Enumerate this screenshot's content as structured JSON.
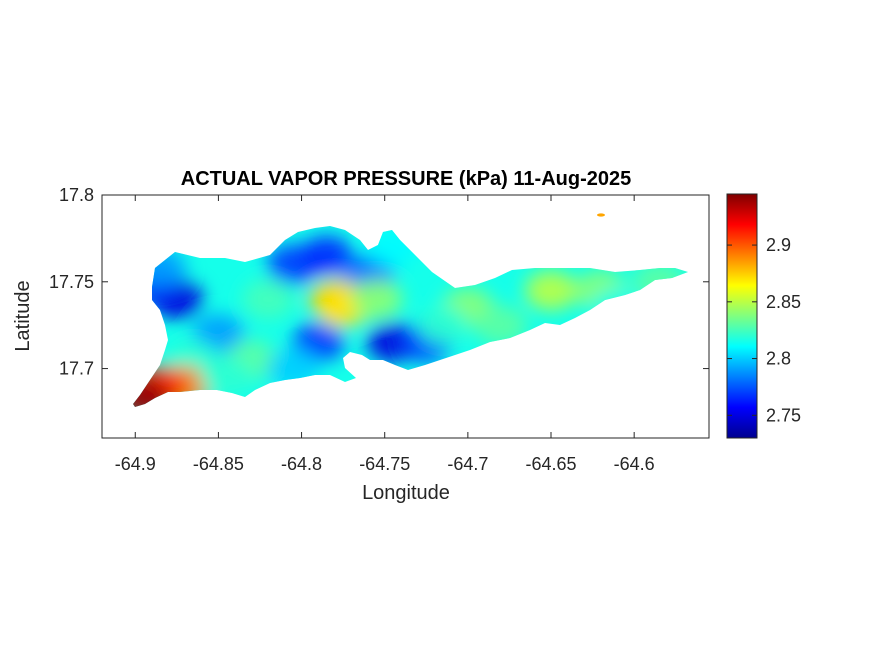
{
  "title": "ACTUAL VAPOR PRESSURE (kPa) 11-Aug-2025",
  "xlabel": "Longitude",
  "ylabel": "Latitude",
  "chart_data": {
    "type": "heatmap",
    "title": "ACTUAL VAPOR PRESSURE (kPa) 11-Aug-2025",
    "xlabel": "Longitude",
    "ylabel": "Latitude",
    "xlim": [
      -64.92,
      -64.555
    ],
    "ylim": [
      17.66,
      17.8
    ],
    "x_ticks": [
      -64.9,
      -64.85,
      -64.8,
      -64.75,
      -64.7,
      -64.65,
      -64.6
    ],
    "x_tick_labels": [
      "-64.9",
      "-64.85",
      "-64.8",
      "-64.75",
      "-64.7",
      "-64.65",
      "-64.6"
    ],
    "y_ticks": [
      17.7,
      17.75,
      17.8
    ],
    "y_tick_labels": [
      "17.7",
      "17.75",
      "17.8"
    ],
    "colorbar": {
      "colormap": "jet",
      "clim": [
        2.73,
        2.945
      ],
      "ticks": [
        2.75,
        2.8,
        2.85,
        2.9
      ],
      "tick_labels": [
        "2.75",
        "2.8",
        "2.85",
        "2.9"
      ]
    },
    "hotspots": [
      {
        "lon": -64.875,
        "lat": 17.74,
        "value": 2.75
      },
      {
        "lon": -64.89,
        "lat": 17.748,
        "value": 2.755
      },
      {
        "lon": -64.805,
        "lat": 17.76,
        "value": 2.77
      },
      {
        "lon": -64.785,
        "lat": 17.765,
        "value": 2.765
      },
      {
        "lon": -64.76,
        "lat": 17.755,
        "value": 2.78
      },
      {
        "lon": -64.745,
        "lat": 17.715,
        "value": 2.75
      },
      {
        "lon": -64.725,
        "lat": 17.715,
        "value": 2.77
      },
      {
        "lon": -64.79,
        "lat": 17.715,
        "value": 2.77
      },
      {
        "lon": -64.85,
        "lat": 17.72,
        "value": 2.79
      },
      {
        "lon": -64.885,
        "lat": 17.758,
        "value": 2.79
      },
      {
        "lon": -64.865,
        "lat": 17.705,
        "value": 2.82
      },
      {
        "lon": -64.82,
        "lat": 17.74,
        "value": 2.825
      },
      {
        "lon": -64.83,
        "lat": 17.705,
        "value": 2.83
      },
      {
        "lon": -64.78,
        "lat": 17.74,
        "value": 2.875
      },
      {
        "lon": -64.775,
        "lat": 17.735,
        "value": 2.87
      },
      {
        "lon": -64.755,
        "lat": 17.74,
        "value": 2.84
      },
      {
        "lon": -64.7,
        "lat": 17.735,
        "value": 2.84
      },
      {
        "lon": -64.715,
        "lat": 17.725,
        "value": 2.82
      },
      {
        "lon": -64.68,
        "lat": 17.725,
        "value": 2.83
      },
      {
        "lon": -64.65,
        "lat": 17.745,
        "value": 2.85
      },
      {
        "lon": -64.62,
        "lat": 17.745,
        "value": 2.84
      },
      {
        "lon": -64.585,
        "lat": 17.75,
        "value": 2.83
      },
      {
        "lon": -64.61,
        "lat": 17.735,
        "value": 2.815
      },
      {
        "lon": -64.87,
        "lat": 17.69,
        "value": 2.89
      },
      {
        "lon": -64.885,
        "lat": 17.69,
        "value": 2.91
      },
      {
        "lon": -64.895,
        "lat": 17.683,
        "value": 2.94
      },
      {
        "lon": -64.845,
        "lat": 17.695,
        "value": 2.82
      },
      {
        "lon": -64.805,
        "lat": 17.7,
        "value": 2.8
      },
      {
        "lon": -64.745,
        "lat": 17.77,
        "value": 2.81
      },
      {
        "lon": -64.622,
        "lat": 17.787,
        "value": 2.89
      }
    ],
    "background_value": 2.815
  }
}
